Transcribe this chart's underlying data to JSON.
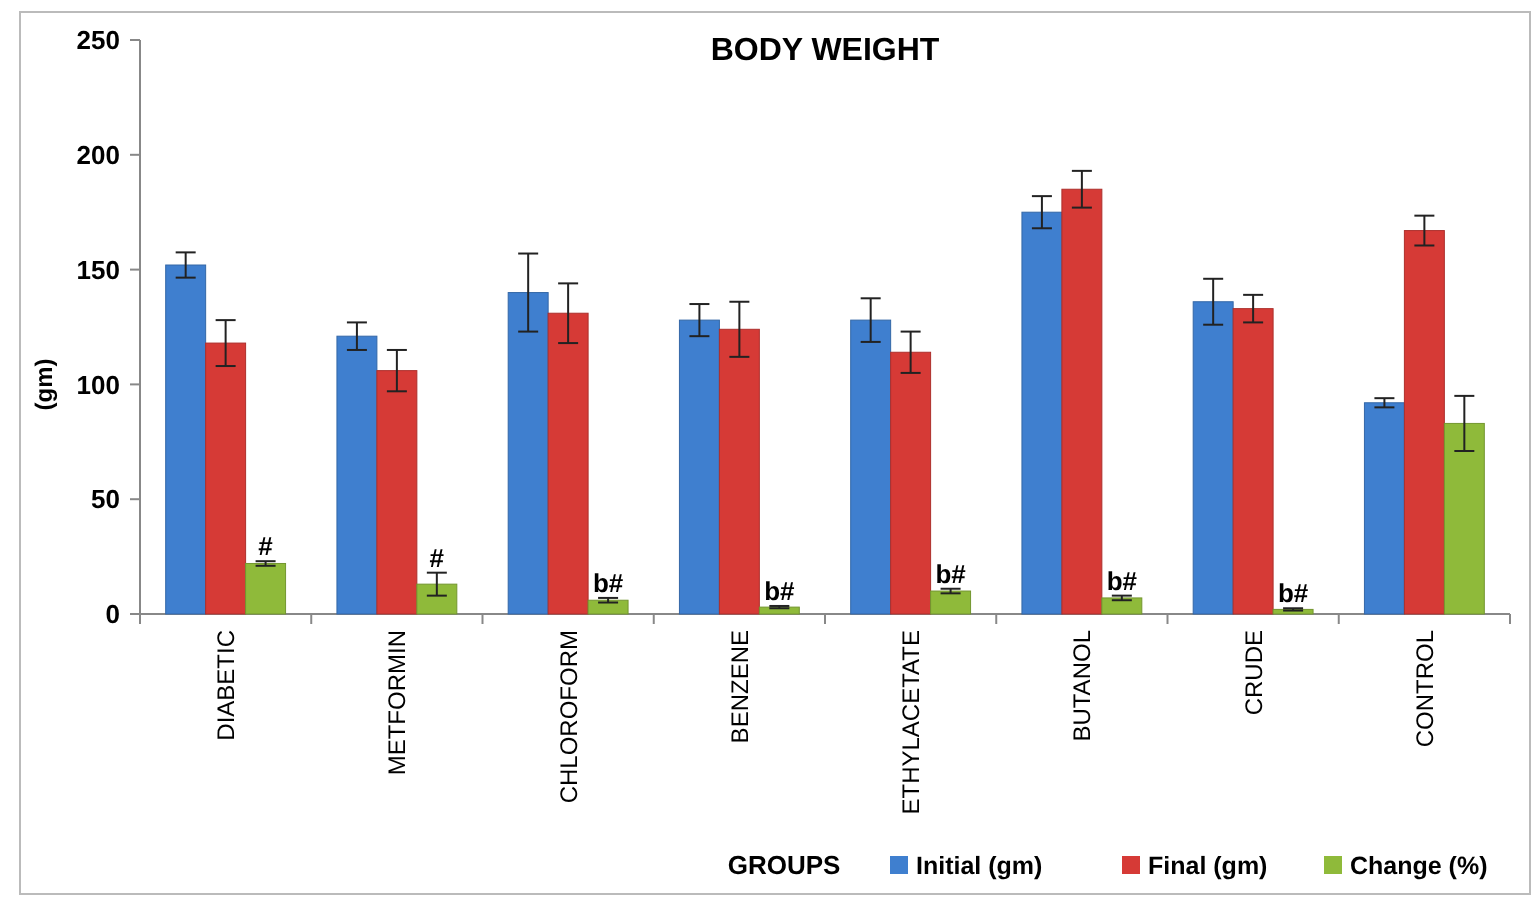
{
  "chart_data": {
    "type": "bar",
    "title": "BODY WEIGHT",
    "xlabel": "GROUPS",
    "ylabel": "(gm)",
    "categories": [
      "DIABETIC",
      "METFORMIN",
      "CHLOROFORM",
      "BENZENE",
      "ETHYLACETATE",
      "BUTANOL",
      "CRUDE",
      "CONTROL"
    ],
    "series": [
      {
        "name": "Initial (gm)",
        "color": "#3f7fcf",
        "values": [
          152,
          121,
          140,
          128,
          128,
          175,
          136,
          92
        ],
        "errors": [
          5.5,
          6,
          17,
          7,
          9.5,
          7,
          10,
          2
        ]
      },
      {
        "name": "Final (gm)",
        "color": "#d63a36",
        "values": [
          118,
          106,
          131,
          124,
          114,
          185,
          133,
          167
        ],
        "errors": [
          10,
          9,
          13,
          12,
          9,
          8,
          6,
          6.5
        ]
      },
      {
        "name": "Change (%)",
        "color": "#8fba3a",
        "values": [
          22,
          13,
          6,
          3,
          10,
          7,
          2,
          83
        ],
        "errors": [
          1,
          5,
          1,
          0.5,
          1,
          1,
          0.5,
          12
        ]
      }
    ],
    "ylim": [
      0,
      250
    ],
    "yticks": [
      0,
      50,
      100,
      150,
      200,
      250
    ],
    "legend": "bottom right",
    "annotations": [
      "#",
      "#",
      "b#",
      "b#",
      "b#",
      "b#",
      "b#"
    ]
  }
}
